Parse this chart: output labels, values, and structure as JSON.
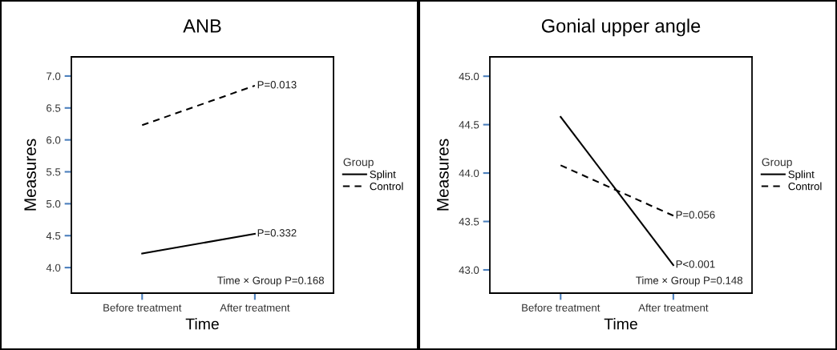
{
  "chart_data": [
    {
      "type": "line",
      "title": "ANB",
      "xlabel": "Time",
      "ylabel": "Measures",
      "legend_title": "Group",
      "legend": "right",
      "marker": "none",
      "grid": false,
      "categories": [
        "Before treatment",
        "After treatment"
      ],
      "ylim": [
        3.6,
        7.3
      ],
      "yticks": [
        {
          "value": 4.0,
          "label": "4.0"
        },
        {
          "value": 4.5,
          "label": "4.5"
        },
        {
          "value": 5.0,
          "label": "5.0"
        },
        {
          "value": 5.5,
          "label": "5.5"
        },
        {
          "value": 6.0,
          "label": "6.0"
        },
        {
          "value": 6.5,
          "label": "6.5"
        },
        {
          "value": 7.0,
          "label": "7.0"
        }
      ],
      "series": [
        {
          "name": "Splint",
          "color": "#000000",
          "line_style": "solid",
          "values": [
            4.22,
            4.53
          ]
        },
        {
          "name": "Control",
          "color": "#000000",
          "line_style": "dashed",
          "values": [
            6.23,
            6.85
          ]
        }
      ],
      "annotations": [
        {
          "text": "P=0.013",
          "x": "After treatment",
          "y": 6.85
        },
        {
          "text": "P=0.332",
          "x": "After treatment",
          "y": 4.53
        },
        "Time × Group P=0.168"
      ]
    },
    {
      "type": "line",
      "title": "Gonial upper angle",
      "xlabel": "Time",
      "ylabel": "Measures",
      "legend_title": "Group",
      "legend": "right",
      "marker": "none",
      "grid": false,
      "categories": [
        "Before treatment",
        "After treatment"
      ],
      "ylim": [
        42.76,
        45.2
      ],
      "yticks": [
        {
          "value": 43.0,
          "label": "43.0"
        },
        {
          "value": 43.5,
          "label": "43.5"
        },
        {
          "value": 44.0,
          "label": "44.0"
        },
        {
          "value": 44.5,
          "label": "44.5"
        },
        {
          "value": 45.0,
          "label": "45.0"
        }
      ],
      "series": [
        {
          "name": "Splint",
          "color": "#000000",
          "line_style": "solid",
          "values": [
            44.58,
            43.05
          ]
        },
        {
          "name": "Control",
          "color": "#000000",
          "line_style": "dashed",
          "values": [
            44.08,
            43.56
          ]
        }
      ],
      "annotations": [
        {
          "text": "P=0.056",
          "x": "After treatment",
          "y": 43.56
        },
        {
          "text": "P<0.001",
          "x": "After treatment",
          "y": 43.05
        },
        "Time × Group P=0.148"
      ]
    }
  ]
}
